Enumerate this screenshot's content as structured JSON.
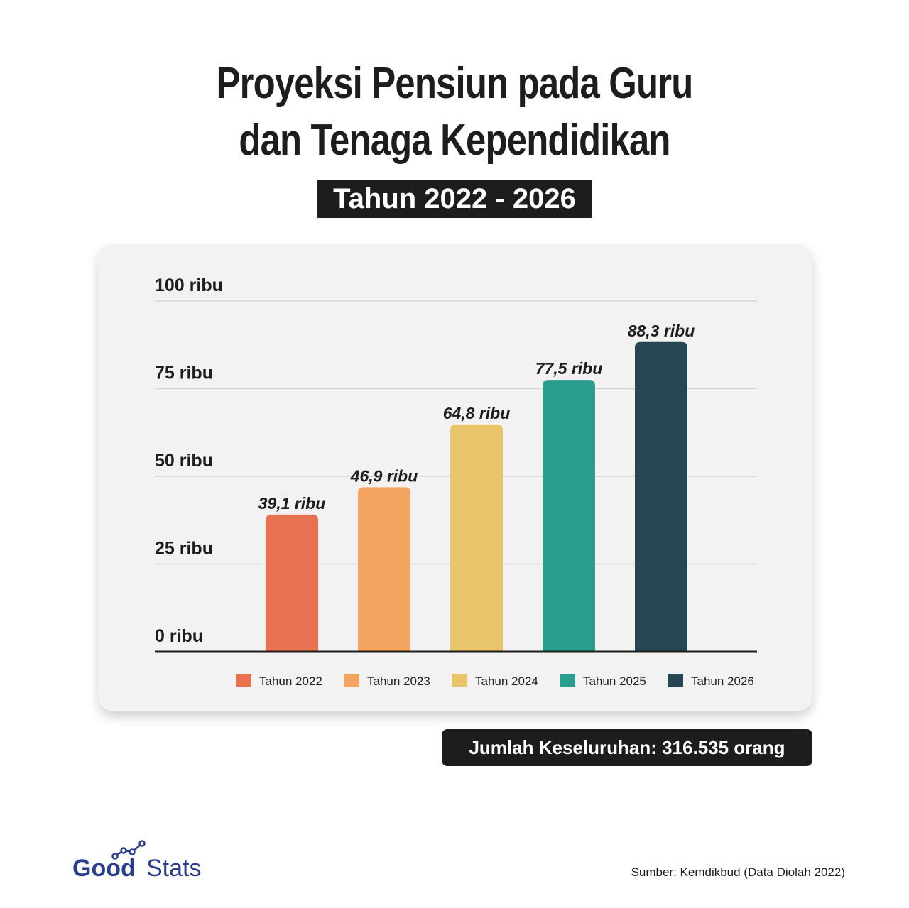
{
  "title_lines": [
    "Proyeksi Pensiun pada Guru",
    "dan Tenaga Kependidikan"
  ],
  "subtitle": "Tahun 2022 - 2026",
  "total": "Jumlah Keseluruhan: 316.535 orang",
  "source": "Sumber: Kemdikbud (Data Diolah 2022)",
  "logo": {
    "text_good": "Good",
    "text_stats": "Stats",
    "icon": "trend-line-icon",
    "color": "#2b3d8f"
  },
  "chart_data": {
    "type": "bar",
    "categories": [
      "Tahun 2022",
      "Tahun 2023",
      "Tahun 2024",
      "Tahun 2025",
      "Tahun 2026"
    ],
    "values": [
      39.1,
      46.9,
      64.8,
      77.5,
      88.3
    ],
    "value_labels": [
      "39,1 ribu",
      "46,9 ribu",
      "64,8 ribu",
      "77,5 ribu",
      "88,3 ribu"
    ],
    "colors": [
      "#e87152",
      "#f2a460",
      "#e8c46a",
      "#2a9d8f",
      "#264653"
    ],
    "ylim": [
      0,
      100
    ],
    "yticks": [
      0,
      25,
      50,
      75,
      100
    ],
    "ytick_labels": [
      "0 ribu",
      "25 ribu",
      "50 ribu",
      "75 ribu",
      "100 ribu"
    ],
    "grid": true,
    "legend": [
      "Tahun 2022",
      "Tahun 2023",
      "Tahun 2024",
      "Tahun 2025",
      "Tahun 2026"
    ],
    "legend_position": "bottom"
  }
}
